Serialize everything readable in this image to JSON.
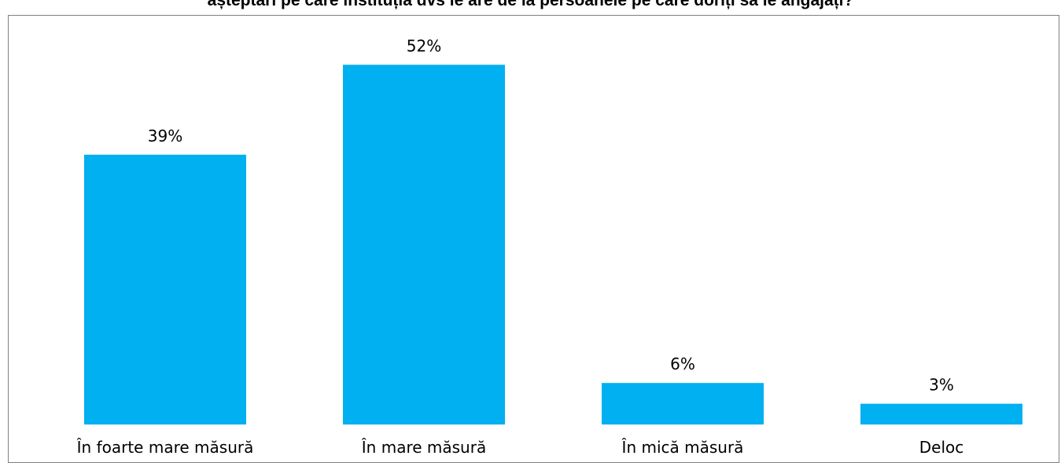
{
  "chart_data": {
    "type": "bar",
    "title": "așteptări pe care instituția dvs le are de la persoanele pe care doriți să le angajați?",
    "categories": [
      "În foarte mare măsură",
      "În mare măsură",
      "În mică măsură",
      "Deloc"
    ],
    "values": [
      39,
      52,
      6,
      3
    ],
    "value_labels": [
      "39%",
      "52%",
      "6%",
      "3%"
    ],
    "unit": "%",
    "ylim": [
      0,
      60
    ],
    "grid": false,
    "legend": "none",
    "bar_color": "#00B0F0"
  }
}
